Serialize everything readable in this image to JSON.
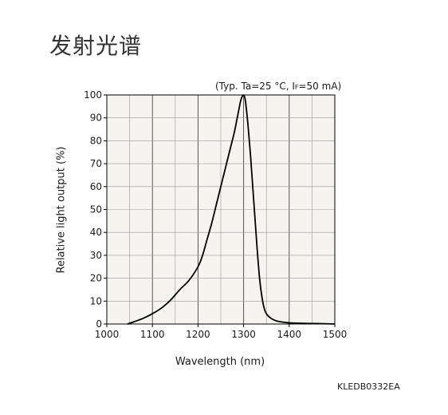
{
  "page": {
    "title": "发射光谱",
    "conditions_prefix": "(Typ. Ta=25 °C, I",
    "conditions_sub": "F",
    "conditions_suffix": "=50 mA)",
    "code": "KLEDB0332EA"
  },
  "chart_data": {
    "type": "line",
    "title": "",
    "xlabel": "Wavelength (nm)",
    "ylabel": "Relative light output (%)",
    "xlim": [
      1000,
      1500
    ],
    "ylim": [
      0,
      100
    ],
    "x_ticks": [
      "1000",
      "1100",
      "1200",
      "1300",
      "1400",
      "1500"
    ],
    "y_ticks": [
      "0",
      "10",
      "20",
      "30",
      "40",
      "50",
      "60",
      "70",
      "80",
      "90",
      "100"
    ],
    "grid": true,
    "background": "#f6f4ee",
    "line_color": "#000000",
    "series": [
      {
        "name": "",
        "x": [
          1045,
          1060,
          1080,
          1100,
          1120,
          1140,
          1160,
          1180,
          1200,
          1210,
          1220,
          1230,
          1240,
          1250,
          1260,
          1270,
          1280,
          1285,
          1290,
          1293,
          1296,
          1300,
          1303,
          1306,
          1310,
          1315,
          1320,
          1325,
          1330,
          1335,
          1340,
          1345,
          1350,
          1360,
          1370,
          1380,
          1400,
          1430,
          1460,
          1500
        ],
        "y": [
          0,
          1,
          2.5,
          4.5,
          7,
          10.5,
          15,
          19,
          25,
          30,
          37,
          44,
          52,
          60,
          68,
          76,
          84,
          89,
          94,
          97,
          99,
          100,
          98.5,
          94,
          86,
          74,
          60,
          46,
          32,
          20,
          12,
          7,
          4.5,
          2.5,
          1.5,
          1,
          0.5,
          0.3,
          0.2,
          0
        ]
      }
    ]
  }
}
